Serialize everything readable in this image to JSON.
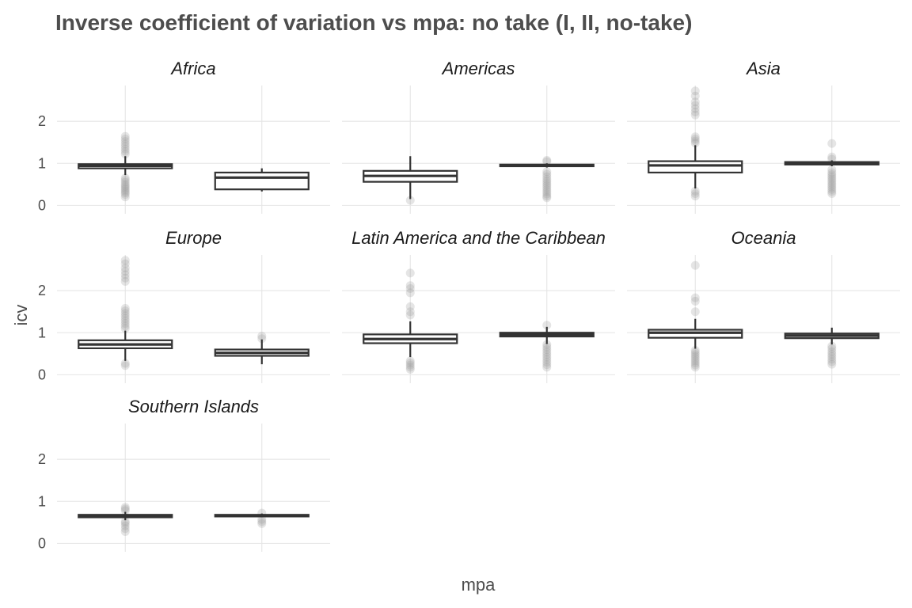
{
  "chart_data": {
    "type": "boxplot",
    "title": "Inverse coefficient of variation vs mpa: no take (I, II, no-take)",
    "xlabel": "mpa",
    "ylabel": "icv",
    "categories": [
      "FALSE",
      "TRUE"
    ],
    "ylim": [
      -0.2,
      2.85
    ],
    "yticks": [
      0,
      1,
      2
    ],
    "grid": true,
    "facets": [
      {
        "name": "Africa",
        "boxes": [
          {
            "category": "FALSE",
            "whisker_low": 0.72,
            "q1": 0.88,
            "median": 0.94,
            "q3": 0.98,
            "whisker_high": 1.17,
            "outliers": [
              0.2,
              0.26,
              0.3,
              0.34,
              0.38,
              0.42,
              0.46,
              0.5,
              0.55,
              0.6,
              0.65,
              1.22,
              1.28,
              1.34,
              1.4,
              1.46,
              1.52,
              1.58,
              1.64
            ]
          },
          {
            "category": "TRUE",
            "whisker_low": 0.33,
            "q1": 0.38,
            "median": 0.66,
            "q3": 0.78,
            "whisker_high": 0.88,
            "outliers": []
          }
        ]
      },
      {
        "name": "Americas",
        "boxes": [
          {
            "category": "FALSE",
            "whisker_low": 0.15,
            "q1": 0.56,
            "median": 0.7,
            "q3": 0.82,
            "whisker_high": 1.17,
            "outliers": [
              0.12
            ]
          },
          {
            "category": "TRUE",
            "whisker_low": 0.9,
            "q1": 0.93,
            "median": 0.95,
            "q3": 0.97,
            "whisker_high": 1.0,
            "outliers": [
              0.18,
              0.22,
              0.27,
              0.32,
              0.37,
              0.42,
              0.47,
              0.52,
              0.57,
              0.62,
              0.68,
              0.74,
              0.8,
              1.04,
              1.07
            ]
          }
        ]
      },
      {
        "name": "Asia",
        "boxes": [
          {
            "category": "FALSE",
            "whisker_low": 0.4,
            "q1": 0.78,
            "median": 0.95,
            "q3": 1.05,
            "whisker_high": 1.43,
            "outliers": [
              0.22,
              0.28,
              0.34,
              1.48,
              1.53,
              1.58,
              1.63,
              2.15,
              2.22,
              2.3,
              2.38,
              2.46,
              2.6,
              2.72
            ]
          },
          {
            "category": "TRUE",
            "whisker_low": 0.93,
            "q1": 0.97,
            "median": 1.0,
            "q3": 1.03,
            "whisker_high": 1.07,
            "outliers": [
              0.28,
              0.33,
              0.38,
              0.43,
              0.48,
              0.53,
              0.58,
              0.63,
              0.68,
              0.73,
              0.78,
              0.85,
              1.1,
              1.15,
              1.47
            ]
          }
        ]
      },
      {
        "name": "Europe",
        "boxes": [
          {
            "category": "FALSE",
            "whisker_low": 0.33,
            "q1": 0.63,
            "median": 0.72,
            "q3": 0.82,
            "whisker_high": 1.05,
            "outliers": [
              0.22,
              0.27,
              1.1,
              1.16,
              1.22,
              1.28,
              1.34,
              1.4,
              1.46,
              1.52,
              1.58,
              2.22,
              2.3,
              2.38,
              2.46,
              2.54,
              2.64,
              2.72
            ]
          },
          {
            "category": "TRUE",
            "whisker_low": 0.25,
            "q1": 0.45,
            "median": 0.52,
            "q3": 0.6,
            "whisker_high": 0.84,
            "outliers": [
              0.86,
              0.92
            ]
          }
        ]
      },
      {
        "name": "Latin America and the Caribbean",
        "boxes": [
          {
            "category": "FALSE",
            "whisker_low": 0.42,
            "q1": 0.75,
            "median": 0.85,
            "q3": 0.96,
            "whisker_high": 1.27,
            "outliers": [
              0.13,
              0.18,
              0.23,
              0.28,
              0.33,
              1.42,
              1.5,
              1.62,
              1.95,
              2.05,
              2.12,
              2.42
            ]
          },
          {
            "category": "TRUE",
            "whisker_low": 0.73,
            "q1": 0.91,
            "median": 0.96,
            "q3": 1.0,
            "whisker_high": 1.14,
            "outliers": [
              0.18,
              0.24,
              0.3,
              0.36,
              0.42,
              0.48,
              0.54,
              0.6,
              0.66,
              0.72,
              1.18
            ]
          }
        ]
      },
      {
        "name": "Oceania",
        "boxes": [
          {
            "category": "FALSE",
            "whisker_low": 0.62,
            "q1": 0.88,
            "median": 1.0,
            "q3": 1.07,
            "whisker_high": 1.33,
            "outliers": [
              0.18,
              0.23,
              0.28,
              0.33,
              0.38,
              0.43,
              0.48,
              0.53,
              0.58,
              1.5,
              1.75,
              1.83,
              2.6
            ]
          },
          {
            "category": "TRUE",
            "whisker_low": 0.72,
            "q1": 0.87,
            "median": 0.93,
            "q3": 0.98,
            "whisker_high": 1.12,
            "outliers": [
              0.25,
              0.31,
              0.37,
              0.43,
              0.49,
              0.55,
              0.62,
              0.68
            ]
          }
        ]
      },
      {
        "name": "Southern Islands",
        "boxes": [
          {
            "category": "FALSE",
            "whisker_low": 0.55,
            "q1": 0.62,
            "median": 0.65,
            "q3": 0.68,
            "whisker_high": 0.75,
            "outliers": [
              0.28,
              0.35,
              0.42,
              0.48,
              0.52,
              0.78,
              0.82,
              0.86
            ]
          },
          {
            "category": "TRUE",
            "whisker_low": 0.62,
            "q1": 0.64,
            "median": 0.66,
            "q3": 0.68,
            "whisker_high": 0.71,
            "outliers": [
              0.47,
              0.52,
              0.57,
              0.72
            ]
          }
        ]
      }
    ]
  },
  "colors": {
    "box_line": "#333333",
    "outlier": "#999999",
    "grid": "#e5e5e5",
    "text": "#4d4d4d",
    "strip_text": "#1a1a1a"
  }
}
